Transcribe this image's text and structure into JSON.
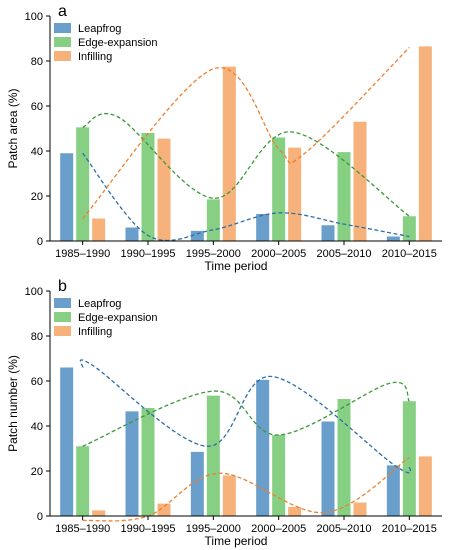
{
  "chart_data": [
    {
      "panel": "a",
      "type": "bar",
      "categories": [
        "1985–1990",
        "1990–1995",
        "1995–2000",
        "2000–2005",
        "2005–2010",
        "2010–2015"
      ],
      "series": [
        {
          "name": "Leapfrog",
          "color": "#6a9ecb",
          "values": [
            39,
            6,
            4.5,
            12,
            7,
            2
          ]
        },
        {
          "name": "Edge-expansion",
          "color": "#86cf83",
          "values": [
            50.5,
            48,
            18.5,
            46,
            39.5,
            11
          ]
        },
        {
          "name": "Infilling",
          "color": "#f6b27a",
          "values": [
            10,
            45.5,
            77.5,
            41.5,
            53,
            86.5
          ]
        }
      ],
      "trend_lines": [
        {
          "series": "Leapfrog",
          "color": "#2d6ea8",
          "points": [
            [
              0,
              39
            ],
            [
              1,
              2.5
            ],
            [
              2,
              5
            ],
            [
              3,
              12.5
            ],
            [
              4,
              7.5
            ],
            [
              5,
              2
            ]
          ]
        },
        {
          "series": "Edge-expansion",
          "color": "#3a9a3a",
          "points": [
            [
              0,
              50.5
            ],
            [
              0.55,
              55
            ],
            [
              2,
              19
            ],
            [
              3.2,
              48.5
            ],
            [
              5,
              11
            ]
          ]
        },
        {
          "series": "Infilling",
          "color": "#ef7f2e",
          "points": [
            [
              0,
              10
            ],
            [
              2,
              76.5
            ],
            [
              3,
              41
            ],
            [
              3.4,
              39
            ],
            [
              5,
              86
            ]
          ]
        }
      ],
      "xlabel": "Time period",
      "ylabel": "Patch area (%)",
      "ylim": [
        0,
        100
      ],
      "yticks": [
        0,
        20,
        40,
        60,
        80,
        100
      ],
      "legend_position": "top-left",
      "grid": false
    },
    {
      "panel": "b",
      "type": "bar",
      "categories": [
        "1985–1990",
        "1990–1995",
        "1995–2000",
        "2000–2005",
        "2005–2010",
        "2010–2015"
      ],
      "series": [
        {
          "name": "Leapfrog",
          "color": "#6a9ecb",
          "values": [
            66,
            46.5,
            28.5,
            60.5,
            42,
            22.5
          ]
        },
        {
          "name": "Edge-expansion",
          "color": "#86cf83",
          "values": [
            31,
            48,
            53.5,
            36,
            52,
            51
          ]
        },
        {
          "name": "Infilling",
          "color": "#f6b27a",
          "values": [
            2.5,
            5.5,
            18,
            4,
            6,
            26.5
          ]
        }
      ],
      "trend_lines": [
        {
          "series": "Leapfrog",
          "color": "#2d6ea8",
          "points": [
            [
              0,
              66
            ],
            [
              0.15,
              67
            ],
            [
              1.9,
              31
            ],
            [
              2.9,
              62
            ],
            [
              4.8,
              22
            ],
            [
              5,
              22.5
            ]
          ]
        },
        {
          "series": "Edge-expansion",
          "color": "#3a9a3a",
          "points": [
            [
              0,
              31
            ],
            [
              2,
              55.5
            ],
            [
              3,
              36
            ],
            [
              4.7,
              59
            ],
            [
              5,
              51
            ]
          ]
        },
        {
          "series": "Infilling",
          "color": "#ef7f2e",
          "points": [
            [
              0,
              -2
            ],
            [
              1,
              0
            ],
            [
              2.1,
              19
            ],
            [
              3.7,
              1.5
            ],
            [
              5,
              26
            ]
          ]
        }
      ],
      "xlabel": "Time period",
      "ylabel": "Patch number (%)",
      "ylim": [
        0,
        100
      ],
      "yticks": [
        0,
        20,
        40,
        60,
        80,
        100
      ],
      "legend_position": "top-left",
      "grid": false
    }
  ]
}
